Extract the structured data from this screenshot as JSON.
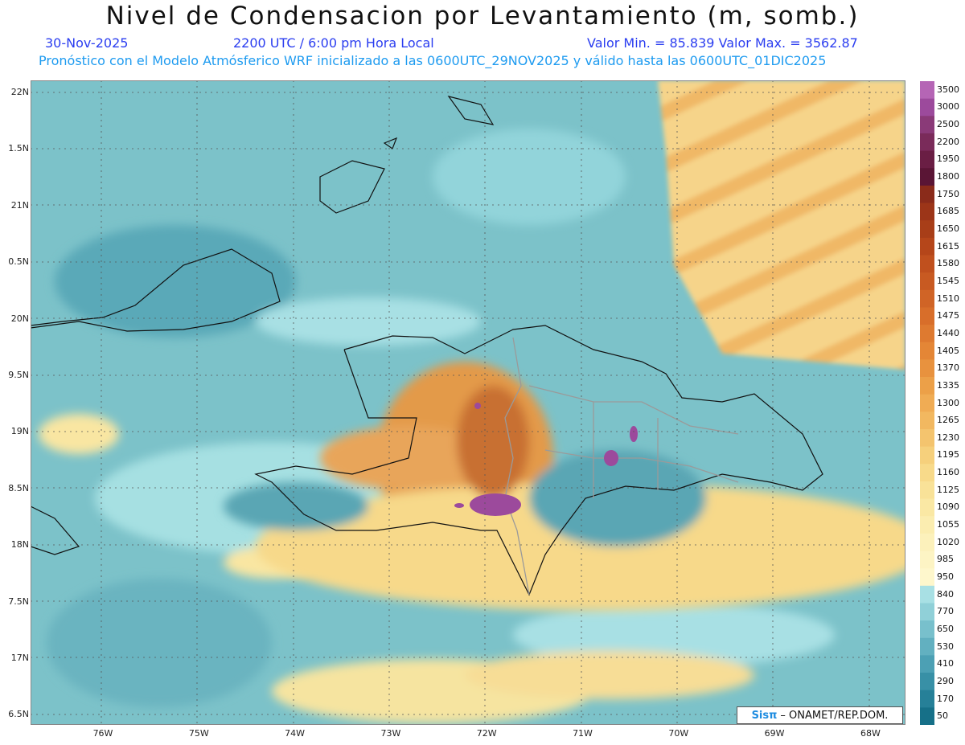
{
  "header": {
    "title": "Nivel de Condensacion por Levantamiento (m, somb.)",
    "date": "30-Nov-2025",
    "time": "2200 UTC / 6:00 pm Hora Local",
    "minmax": "Valor Min. = 85.839   Valor Max. = 3562.87",
    "model_info": "Pronóstico con el Modelo Atmósferico WRF inicializado a las 0600UTC_29NOV2025 y válido hasta las  0600UTC_01DIC2025"
  },
  "axes": {
    "lat_ticks": [
      "22N",
      "1.5N",
      "21N",
      "0.5N",
      "20N",
      "9.5N",
      "19N",
      "8.5N",
      "18N",
      "7.5N",
      "17N",
      "6.5N"
    ],
    "lon_ticks": [
      "76W",
      "75W",
      "74W",
      "73W",
      "72W",
      "71W",
      "70W",
      "69W",
      "68W"
    ]
  },
  "colorbar": {
    "labels": [
      "3500",
      "3000",
      "2500",
      "2200",
      "1950",
      "1800",
      "1750",
      "1685",
      "1650",
      "1615",
      "1580",
      "1545",
      "1510",
      "1475",
      "1440",
      "1405",
      "1370",
      "1335",
      "1300",
      "1265",
      "1230",
      "1195",
      "1160",
      "1125",
      "1090",
      "1055",
      "1020",
      "985",
      "950",
      "840",
      "770",
      "650",
      "530",
      "410",
      "290",
      "170",
      "50"
    ],
    "colors": [
      "#b565b5",
      "#9c4a9c",
      "#8a3a78",
      "#7a2b5a",
      "#6a1e44",
      "#5a1535",
      "#8a2b1a",
      "#9c3518",
      "#a83e18",
      "#b5461a",
      "#c0501e",
      "#c85a22",
      "#d06426",
      "#d86e2a",
      "#de7a30",
      "#e48636",
      "#e8923e",
      "#eca048",
      "#f0ac54",
      "#f2b860",
      "#f4c46e",
      "#f6d07c",
      "#f8da8a",
      "#f9e298",
      "#fae8a4",
      "#fbedb0",
      "#fcf1bb",
      "#fdf4c4",
      "#fef7cc",
      "#a8e0e4",
      "#90d0d8",
      "#78c0cc",
      "#62b0c0",
      "#4ca0b4",
      "#3890a6",
      "#268098",
      "#167088"
    ]
  },
  "credit": {
    "brand": "Sisπ",
    "text": "– ONAMET/REP.DOM."
  }
}
